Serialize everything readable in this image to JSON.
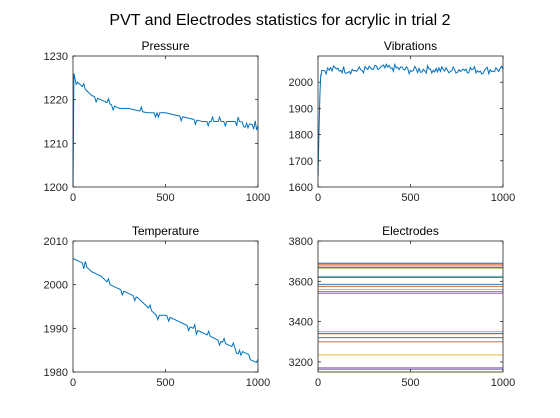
{
  "title": "PVT and Electrodes statistics for acrylic in trial 2",
  "colors": {
    "series": "#0072BD",
    "axis": "#262626",
    "electrodes": [
      "#0072BD",
      "#D95319",
      "#EDB120",
      "#7E2F8E",
      "#77AC30",
      "#4DBEEE",
      "#A2142F"
    ]
  },
  "chart_data": [
    {
      "type": "line",
      "title": "Pressure",
      "xlim": [
        0,
        1000
      ],
      "ylim": [
        1200,
        1230
      ],
      "xticks": [
        0,
        500,
        1000
      ],
      "yticks": [
        1200,
        1210,
        1220,
        1230
      ],
      "series": [
        {
          "x": [
            0,
            5,
            10,
            25,
            50,
            75,
            100,
            150,
            200,
            250,
            300,
            400,
            500,
            600,
            700,
            800,
            900,
            1000
          ],
          "values": [
            1200,
            1226,
            1225,
            1224,
            1223,
            1222,
            1221,
            1220,
            1219,
            1218,
            1218,
            1217,
            1217,
            1216,
            1215,
            1215,
            1215,
            1214
          ]
        }
      ]
    },
    {
      "type": "line",
      "title": "Vibrations",
      "xlim": [
        0,
        1000
      ],
      "ylim": [
        1600,
        2100
      ],
      "xticks": [
        0,
        500,
        1000
      ],
      "yticks": [
        1600,
        1700,
        1800,
        1900,
        2000
      ],
      "series": [
        {
          "x": [
            0,
            5,
            10,
            15,
            20,
            100,
            200,
            300,
            400,
            500,
            600,
            700,
            800,
            900,
            1000
          ],
          "values": [
            1640,
            1800,
            1950,
            2030,
            2045,
            2050,
            2045,
            2050,
            2055,
            2045,
            2050,
            2045,
            2050,
            2045,
            2050
          ]
        }
      ]
    },
    {
      "type": "line",
      "title": "Temperature",
      "xlim": [
        0,
        1000
      ],
      "ylim": [
        1980,
        2010
      ],
      "xticks": [
        0,
        500,
        1000
      ],
      "yticks": [
        1980,
        1990,
        2000,
        2010
      ],
      "series": [
        {
          "x": [
            0,
            50,
            100,
            150,
            200,
            250,
            300,
            350,
            400,
            450,
            500,
            550,
            600,
            650,
            700,
            750,
            800,
            850,
            900,
            950,
            1000
          ],
          "values": [
            2006,
            2005,
            2003,
            2002,
            2000,
            1999,
            1998,
            1997,
            1995,
            1993,
            1993,
            1992,
            1991,
            1990,
            1989,
            1988,
            1987,
            1986,
            1985,
            1984,
            1983
          ]
        }
      ]
    },
    {
      "type": "line",
      "title": "Electrodes",
      "xlim": [
        0,
        1000
      ],
      "ylim": [
        3150,
        3800
      ],
      "xticks": [
        0,
        500,
        1000
      ],
      "yticks": [
        3200,
        3400,
        3600,
        3800
      ],
      "series": [
        {
          "values": [
            3690,
            3690
          ]
        },
        {
          "values": [
            3685,
            3685
          ]
        },
        {
          "values": [
            3678,
            3678
          ]
        },
        {
          "values": [
            3670,
            3670
          ]
        },
        {
          "values": [
            3666,
            3666
          ]
        },
        {
          "values": [
            3625,
            3625
          ]
        },
        {
          "values": [
            3620,
            3620
          ]
        },
        {
          "values": [
            3585,
            3585
          ]
        },
        {
          "values": [
            3575,
            3575
          ]
        },
        {
          "values": [
            3560,
            3560
          ]
        },
        {
          "values": [
            3548,
            3548
          ]
        },
        {
          "values": [
            3540,
            3540
          ]
        },
        {
          "values": [
            3350,
            3350
          ]
        },
        {
          "values": [
            3340,
            3340
          ]
        },
        {
          "values": [
            3320,
            3320
          ]
        },
        {
          "values": [
            3300,
            3300
          ]
        },
        {
          "values": [
            3235,
            3235
          ]
        },
        {
          "values": [
            3170,
            3170
          ]
        },
        {
          "values": [
            3163,
            3163
          ]
        }
      ]
    }
  ]
}
